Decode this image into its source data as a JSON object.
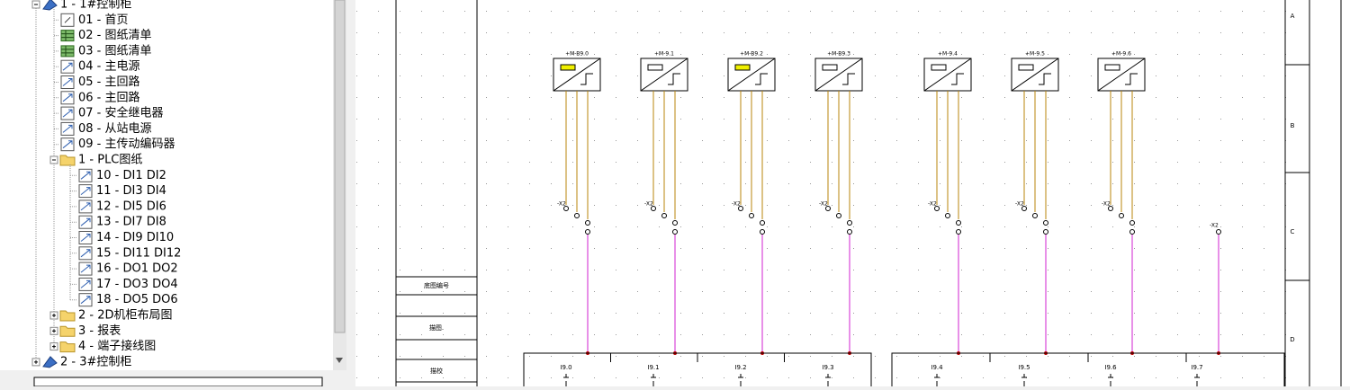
{
  "tree": {
    "root": "1 - 1#控制柜",
    "pages": [
      "01 - 首页",
      "02 - 图纸清单",
      "03 - 图纸清单",
      "04 - 主电源",
      "05 - 主回路",
      "06 - 主回路",
      "07 - 安全继电器",
      "08 - 从站电源",
      "09 - 主传动编码器"
    ],
    "plc": {
      "label": "1 - PLC图纸",
      "pages": [
        "10 - DI1 DI2",
        "11 - DI3 DI4",
        "12 - DI5 DI6",
        "13 - DI7 DI8",
        "14 - DI9 DI10",
        "15 - DI11 DI12",
        "16 - DO1 DO2",
        "17 - DO3 DO4",
        "18 - DO5 DO6"
      ]
    },
    "folders": [
      "2 - 2D机柜布局图",
      "3 - 报表",
      "4 - 端子接线图"
    ],
    "next_root": "2 - 3#控制柜"
  },
  "drawing": {
    "devices": [
      "+M-B9.0",
      "+M-9.1",
      "+M-B9.2",
      "+M-B9.3",
      "+M-9.4",
      "+M-9.5",
      "+M-9.6"
    ],
    "terminal_labels": [
      "-X2",
      "-X2",
      "-X2",
      "-X2",
      "-X2",
      "-X2",
      "-X2",
      "-X2"
    ],
    "io_labels": [
      "I9.0",
      "I9.1",
      "I9.2",
      "I9.3",
      "I9.4",
      "I9.5",
      "I9.6",
      "I9.7"
    ],
    "row_labels": [
      "A",
      "B",
      "C",
      "D"
    ],
    "title_block": [
      "底图编号",
      "描图.",
      "描校"
    ]
  }
}
